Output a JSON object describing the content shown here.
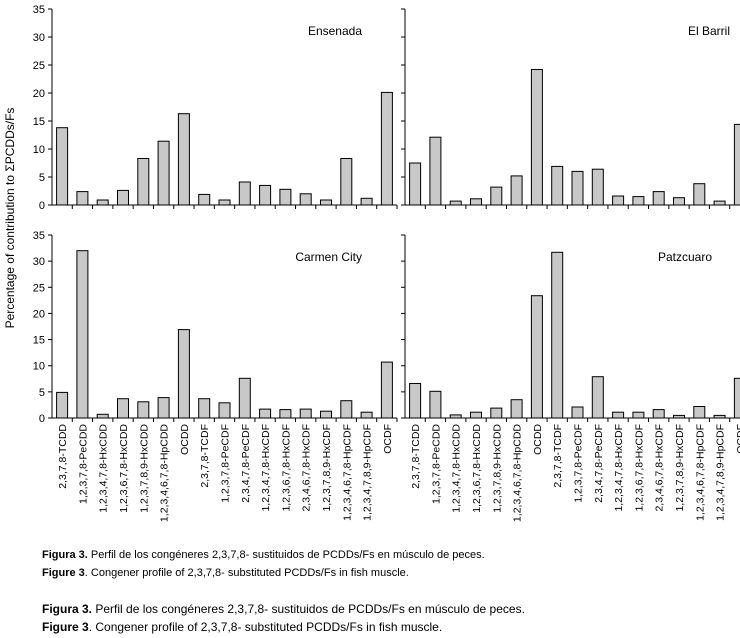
{
  "ylabel": "Percentage of contribution to ΣPCDDs/Fs",
  "ylim": [
    0,
    35
  ],
  "yticks": [
    0,
    5,
    10,
    15,
    20,
    25,
    30,
    35
  ],
  "colors": {
    "bar_fill": "#c8c8c8",
    "bar_stroke": "#000000",
    "axis": "#000000"
  },
  "chart_data": [
    {
      "type": "bar",
      "title": "Ensenada",
      "ylabel": "Percentage of contribution to ΣPCDDs/Fs",
      "ylim": [
        0,
        35
      ],
      "categories": [
        "2,3,7,8-TCDD",
        "1,2,3,7,8-PeCDD",
        "1,2,3,4,7,8-HxCDD",
        "1,2,3,6,7,8-HxCDD",
        "1,2,3,7,8,9-HxCDD",
        "1,2,3,4,6,7,8-HpCDD",
        "OCDD",
        "2,3,7,8-TCDF",
        "1,2,3,7,8-PeCDF",
        "2,3,4,7,8-PeCDF",
        "1,2,3,4,7,8-HxCDF",
        "1,2,3,6,7,8-HxCDF",
        "2,3,4,6,7,8-HxCDF",
        "1,2,3,7,8,9-HxCDF",
        "1,2,3,4,6,7,8-HpCDF",
        "1,2,3,4,7,8,9-HpCDF",
        "OCDF"
      ],
      "values": [
        13.8,
        2.4,
        0.9,
        2.6,
        8.3,
        11.4,
        16.3,
        1.9,
        0.9,
        4.1,
        3.5,
        2.8,
        2.0,
        0.9,
        8.3,
        1.2,
        20.1
      ]
    },
    {
      "type": "bar",
      "title": "El Barril",
      "ylabel": "Percentage of contribution to ΣPCDDs/Fs",
      "ylim": [
        0,
        35
      ],
      "categories": [
        "2,3,7,8-TCDD",
        "1,2,3,7,8-PeCDD",
        "1,2,3,4,7,8-HxCDD",
        "1,2,3,6,7,8-HxCDD",
        "1,2,3,7,8,9-HxCDD",
        "1,2,3,4,6,7,8-HpCDD",
        "OCDD",
        "2,3,7,8-TCDF",
        "1,2,3,7,8-PeCDF",
        "2,3,4,7,8-PeCDF",
        "1,2,3,4,7,8-HxCDF",
        "1,2,3,6,7,8-HxCDF",
        "2,3,4,6,7,8-HxCDF",
        "1,2,3,7,8,9-HxCDF",
        "1,2,3,4,6,7,8-HpCDF",
        "1,2,3,4,7,8,9-HpCDF",
        "OCDF"
      ],
      "values": [
        7.5,
        12.1,
        0.7,
        1.1,
        3.2,
        5.2,
        24.2,
        6.9,
        6.0,
        6.4,
        1.6,
        1.5,
        2.4,
        1.3,
        3.8,
        0.7,
        14.4
      ]
    },
    {
      "type": "bar",
      "title": "Carmen City",
      "ylabel": "Percentage of contribution to ΣPCDDs/Fs",
      "ylim": [
        0,
        35
      ],
      "categories": [
        "2,3,7,8-TCDD",
        "1,2,3,7,8-PeCDD",
        "1,2,3,4,7,8-HxCDD",
        "1,2,3,6,7,8-HxCDD",
        "1,2,3,7,8,9-HxCDD",
        "1,2,3,4,6,7,8-HpCDD",
        "OCDD",
        "2,3,7,8-TCDF",
        "1,2,3,7,8-PeCDF",
        "2,3,4,7,8-PeCDF",
        "1,2,3,4,7,8-HxCDF",
        "1,2,3,6,7,8-HxCDF",
        "2,3,4,6,7,8-HxCDF",
        "1,2,3,7,8,9-HxCDF",
        "1,2,3,4,6,7,8-HpCDF",
        "1,2,3,4,7,8,9-HpCDF",
        "OCDF"
      ],
      "values": [
        4.9,
        32.0,
        0.7,
        3.7,
        3.1,
        3.9,
        16.9,
        3.7,
        2.9,
        7.6,
        1.7,
        1.6,
        1.7,
        1.3,
        3.3,
        1.1,
        10.7
      ]
    },
    {
      "type": "bar",
      "title": "Patzcuaro",
      "ylabel": "Percentage of contribution to ΣPCDDs/Fs",
      "ylim": [
        0,
        35
      ],
      "categories": [
        "2,3,7,8-TCDD",
        "1,2,3,7,8-PeCDD",
        "1,2,3,4,7,8-HxCDD",
        "1,2,3,6,7,8-HxCDD",
        "1,2,3,7,8,9-HxCDD",
        "1,2,3,4,6,7,8-HpCDD",
        "OCDD",
        "2,3,7,8-TCDF",
        "1,2,3,7,8-PeCDF",
        "2,3,4,7,8-PeCDF",
        "1,2,3,4,7,8-HxCDF",
        "1,2,3,6,7,8-HxCDF",
        "2,3,4,6,7,8-HxCDF",
        "1,2,3,7,8,9-HxCDF",
        "1,2,3,4,6,7,8-HpCDF",
        "1,2,3,4,7,8,9-HpCDF",
        "OCDF"
      ],
      "values": [
        6.6,
        5.1,
        0.6,
        1.1,
        1.9,
        3.5,
        23.4,
        31.7,
        2.1,
        7.9,
        1.1,
        1.1,
        1.6,
        0.5,
        2.2,
        0.5,
        7.6
      ]
    }
  ],
  "captions": [
    {
      "label": "Figura 3.",
      "text": " Perfil de los congéneres 2,3,7,8- sustituidos de PCDDs/Fs en músculo de peces."
    },
    {
      "label": "Figure 3",
      "text": ". Congener profile of 2,3,7,8- substituted PCDDs/Fs in fish muscle."
    },
    {
      "label": "Figura 3.",
      "text": " Perfil de los congéneres 2,3,7,8- sustituidos de PCDDs/Fs en músculo de peces."
    },
    {
      "label": "Figure 3",
      "text": ". Congener profile of 2,3,7,8- substituted PCDDs/Fs in fish muscle."
    }
  ]
}
